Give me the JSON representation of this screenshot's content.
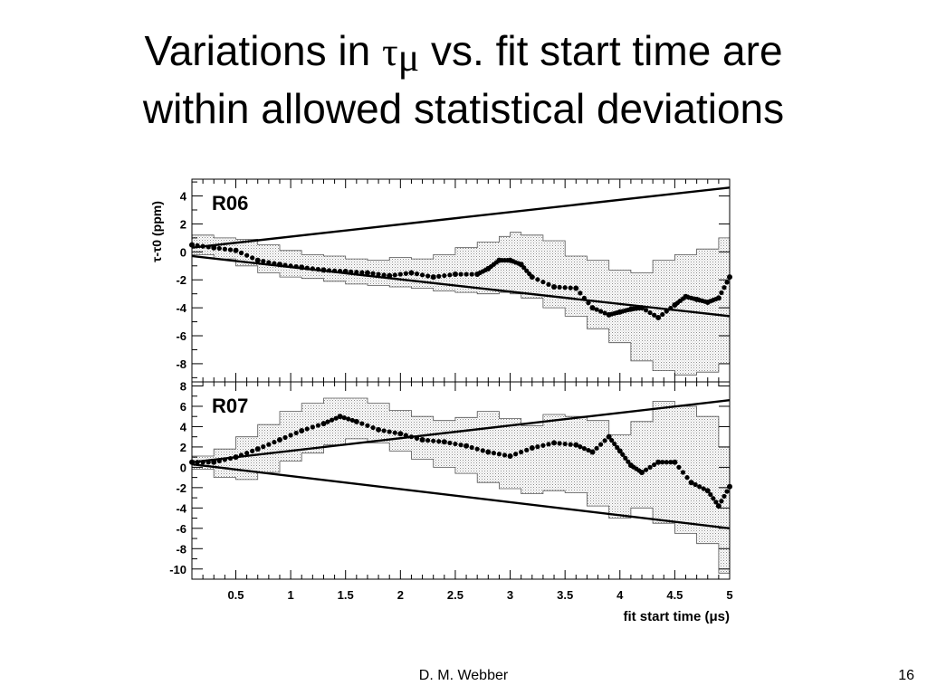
{
  "slide": {
    "title_line1_pre": "Variations in ",
    "title_tau": "τ",
    "title_mu": "μ",
    "title_line1_post": " vs. fit start time are",
    "title_line2": "within allowed statistical deviations",
    "footer_author": "D. M. Webber",
    "page_number": "16"
  },
  "chart_data": [
    {
      "type": "scatter",
      "panel_label": "R06",
      "ylabel": "τ-τ0 (ppm)",
      "xlabel": "",
      "xlim": [
        0.1,
        5.0
      ],
      "ylim": [
        -9.3,
        5.2
      ],
      "yticks": [
        4,
        2,
        0,
        -2,
        -4,
        -6,
        -8
      ],
      "xticks": [
        0.5,
        1,
        1.5,
        2,
        2.5,
        3,
        3.5,
        4,
        4.5,
        5
      ],
      "series": [
        {
          "name": "data",
          "x": [
            0.1,
            0.3,
            0.5,
            0.7,
            0.9,
            1.1,
            1.3,
            1.5,
            1.7,
            1.9,
            2.1,
            2.3,
            2.5,
            2.7,
            2.8,
            2.9,
            3.0,
            3.1,
            3.2,
            3.4,
            3.6,
            3.75,
            3.9,
            4.0,
            4.1,
            4.2,
            4.35,
            4.5,
            4.6,
            4.7,
            4.8,
            4.9,
            5.0
          ],
          "values": [
            0.5,
            0.3,
            0.1,
            -0.6,
            -0.9,
            -1.1,
            -1.3,
            -1.4,
            -1.5,
            -1.7,
            -1.5,
            -1.8,
            -1.6,
            -1.6,
            -1.2,
            -0.6,
            -0.6,
            -0.9,
            -1.8,
            -2.5,
            -2.6,
            -4.0,
            -4.5,
            -4.3,
            -4.1,
            -4.0,
            -4.7,
            -3.8,
            -3.2,
            -3.4,
            -3.6,
            -3.3,
            -1.8
          ]
        },
        {
          "name": "band_upper",
          "x": [
            0.1,
            0.3,
            0.5,
            0.7,
            0.9,
            1.1,
            1.3,
            1.5,
            1.7,
            1.9,
            2.1,
            2.3,
            2.5,
            2.7,
            2.9,
            3.0,
            3.1,
            3.3,
            3.5,
            3.7,
            3.9,
            4.1,
            4.3,
            4.5,
            4.7,
            4.9,
            5.0
          ],
          "values": [
            1.2,
            1.0,
            0.9,
            0.5,
            0.1,
            -0.2,
            -0.3,
            -0.5,
            -0.6,
            -0.4,
            -0.5,
            -0.2,
            0.3,
            0.7,
            1.1,
            1.4,
            1.2,
            0.8,
            -0.3,
            -0.6,
            -1.3,
            -1.5,
            -0.6,
            -0.2,
            0.2,
            1.0,
            1.5
          ]
        },
        {
          "name": "band_lower",
          "x": [
            0.1,
            0.3,
            0.5,
            0.7,
            0.9,
            1.1,
            1.3,
            1.5,
            1.7,
            1.9,
            2.1,
            2.3,
            2.5,
            2.7,
            2.9,
            3.0,
            3.1,
            3.3,
            3.5,
            3.7,
            3.9,
            4.1,
            4.3,
            4.5,
            4.7,
            4.9,
            5.0
          ],
          "values": [
            -0.2,
            -0.5,
            -1.0,
            -1.5,
            -1.8,
            -1.9,
            -2.1,
            -2.3,
            -2.4,
            -2.5,
            -2.6,
            -2.8,
            -2.9,
            -3.0,
            -2.9,
            -3.0,
            -3.3,
            -4.0,
            -4.6,
            -5.5,
            -6.5,
            -7.8,
            -8.5,
            -8.8,
            -8.6,
            -8.0,
            -7.6
          ]
        },
        {
          "name": "upper_line",
          "x": [
            0.1,
            5.0
          ],
          "values": [
            0.3,
            4.6
          ]
        },
        {
          "name": "lower_line",
          "x": [
            0.1,
            5.0
          ],
          "values": [
            -0.3,
            -4.6
          ]
        }
      ]
    },
    {
      "type": "scatter",
      "panel_label": "R07",
      "ylabel": "",
      "xlabel": "fit start time (μs)",
      "xlim": [
        0.1,
        5.0
      ],
      "ylim": [
        -11,
        8.4
      ],
      "yticks": [
        8,
        6,
        4,
        2,
        0,
        -2,
        -4,
        -6,
        -8,
        -10
      ],
      "xticks": [
        0.5,
        1,
        1.5,
        2,
        2.5,
        3,
        3.5,
        4,
        4.5,
        5
      ],
      "xticklabels": [
        "0.5",
        "1",
        "1.5",
        "2",
        "2.5",
        "3",
        "3.5",
        "4",
        "4.5",
        "5"
      ],
      "series": [
        {
          "name": "data",
          "x": [
            0.1,
            0.3,
            0.5,
            0.7,
            0.9,
            1.1,
            1.3,
            1.45,
            1.6,
            1.8,
            2.0,
            2.2,
            2.4,
            2.6,
            2.8,
            3.0,
            3.2,
            3.4,
            3.6,
            3.75,
            3.9,
            4.0,
            4.1,
            4.2,
            4.35,
            4.5,
            4.65,
            4.8,
            4.9,
            5.0
          ],
          "values": [
            0.5,
            0.5,
            1.0,
            1.8,
            2.7,
            3.6,
            4.3,
            5.0,
            4.5,
            3.7,
            3.3,
            2.7,
            2.5,
            2.1,
            1.5,
            1.1,
            1.9,
            2.4,
            2.2,
            1.5,
            3.0,
            1.6,
            0.2,
            -0.5,
            0.5,
            0.5,
            -1.5,
            -2.3,
            -3.8,
            -1.9
          ]
        },
        {
          "name": "band_upper",
          "x": [
            0.1,
            0.3,
            0.5,
            0.7,
            0.9,
            1.1,
            1.3,
            1.5,
            1.7,
            1.9,
            2.1,
            2.3,
            2.5,
            2.7,
            2.9,
            3.1,
            3.3,
            3.5,
            3.7,
            3.9,
            4.1,
            4.3,
            4.5,
            4.7,
            4.9,
            5.0
          ],
          "values": [
            1.1,
            1.8,
            3.0,
            4.2,
            5.5,
            6.3,
            6.8,
            6.8,
            6.3,
            5.6,
            5.0,
            4.6,
            4.9,
            5.5,
            4.8,
            4.1,
            5.2,
            5.0,
            4.6,
            3.2,
            4.5,
            6.5,
            6.0,
            5.0,
            2.0,
            3.2
          ]
        },
        {
          "name": "band_lower",
          "x": [
            0.1,
            0.3,
            0.5,
            0.7,
            0.9,
            1.1,
            1.3,
            1.5,
            1.7,
            1.9,
            2.1,
            2.3,
            2.5,
            2.7,
            2.9,
            3.1,
            3.3,
            3.5,
            3.7,
            3.9,
            4.1,
            4.3,
            4.5,
            4.7,
            4.9,
            5.0
          ],
          "values": [
            -0.2,
            -1.0,
            -1.2,
            -0.5,
            0.6,
            1.4,
            2.2,
            2.8,
            2.4,
            1.6,
            0.8,
            0.0,
            -0.6,
            -1.5,
            -2.1,
            -2.6,
            -2.3,
            -2.5,
            -3.8,
            -5.0,
            -4.0,
            -5.5,
            -6.5,
            -7.5,
            -10.4,
            -9.0
          ]
        },
        {
          "name": "upper_line",
          "x": [
            0.1,
            5.0
          ],
          "values": [
            0.5,
            6.6
          ]
        },
        {
          "name": "lower_line",
          "x": [
            0.1,
            5.0
          ],
          "values": [
            0.3,
            -6.0
          ]
        }
      ]
    }
  ],
  "style": {
    "band_fill": "#e3e3e3",
    "band_stroke": "#555555",
    "line_color": "#000000",
    "marker_color": "#000000"
  }
}
